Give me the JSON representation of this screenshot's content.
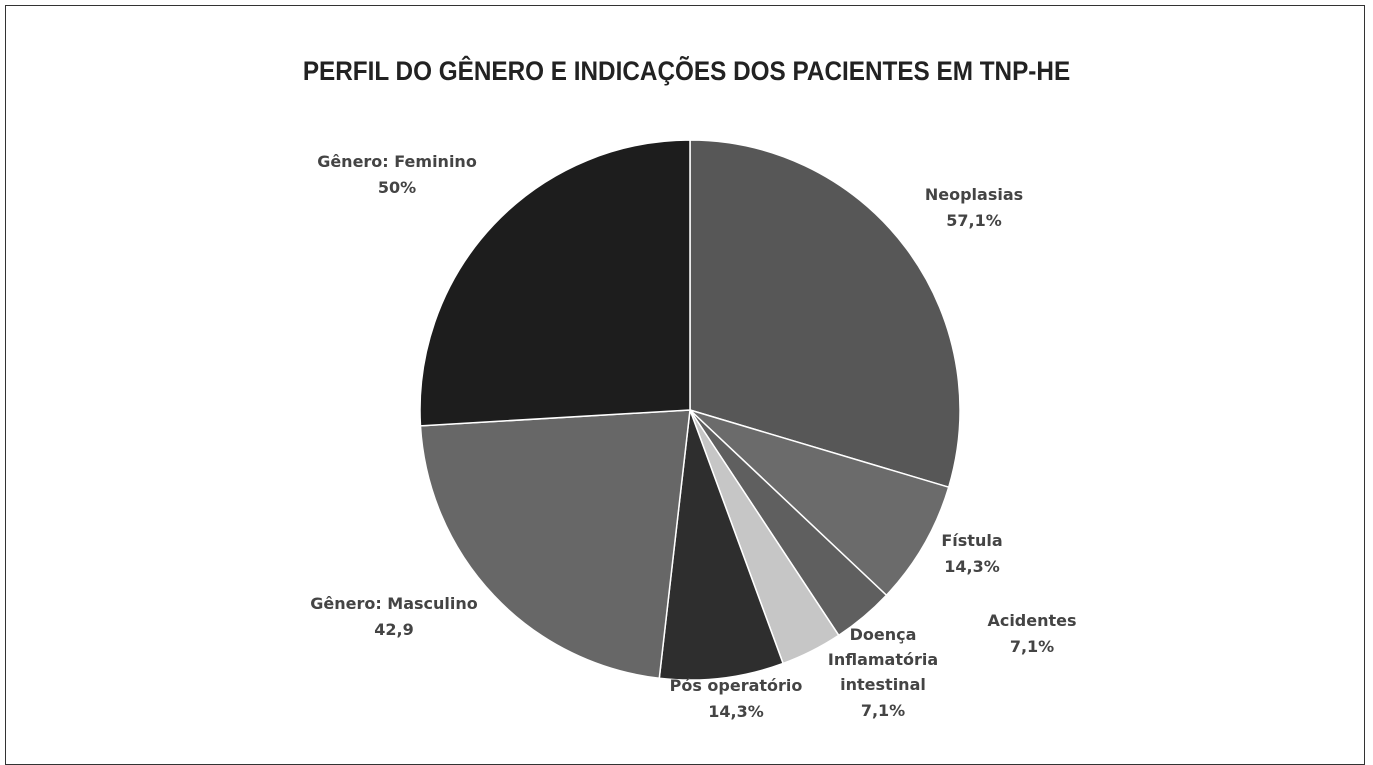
{
  "chart_data": {
    "type": "pie",
    "title": "PERFIL DO GÊNERO E INDICAÇÕES DOS PACIENTES EM TNP-HE",
    "categories": [
      "Neoplasias",
      "Fístula",
      "Acidentes",
      "Doença Inflamatória intestinal",
      "Pós operatório",
      "Gênero: Masculino",
      "Gênero: Feminino"
    ],
    "values": [
      57.1,
      14.3,
      7.1,
      7.1,
      14.3,
      42.9,
      50
    ],
    "value_labels": [
      "57,1%",
      "14,3%",
      "7,1%",
      "7,1%",
      "14,3%",
      "42,9",
      "50%"
    ],
    "colors": [
      "#575757",
      "#6b6b6b",
      "#5f5f5f",
      "#c6c6c6",
      "#2e2e2e",
      "#676767",
      "#1d1d1d"
    ]
  }
}
